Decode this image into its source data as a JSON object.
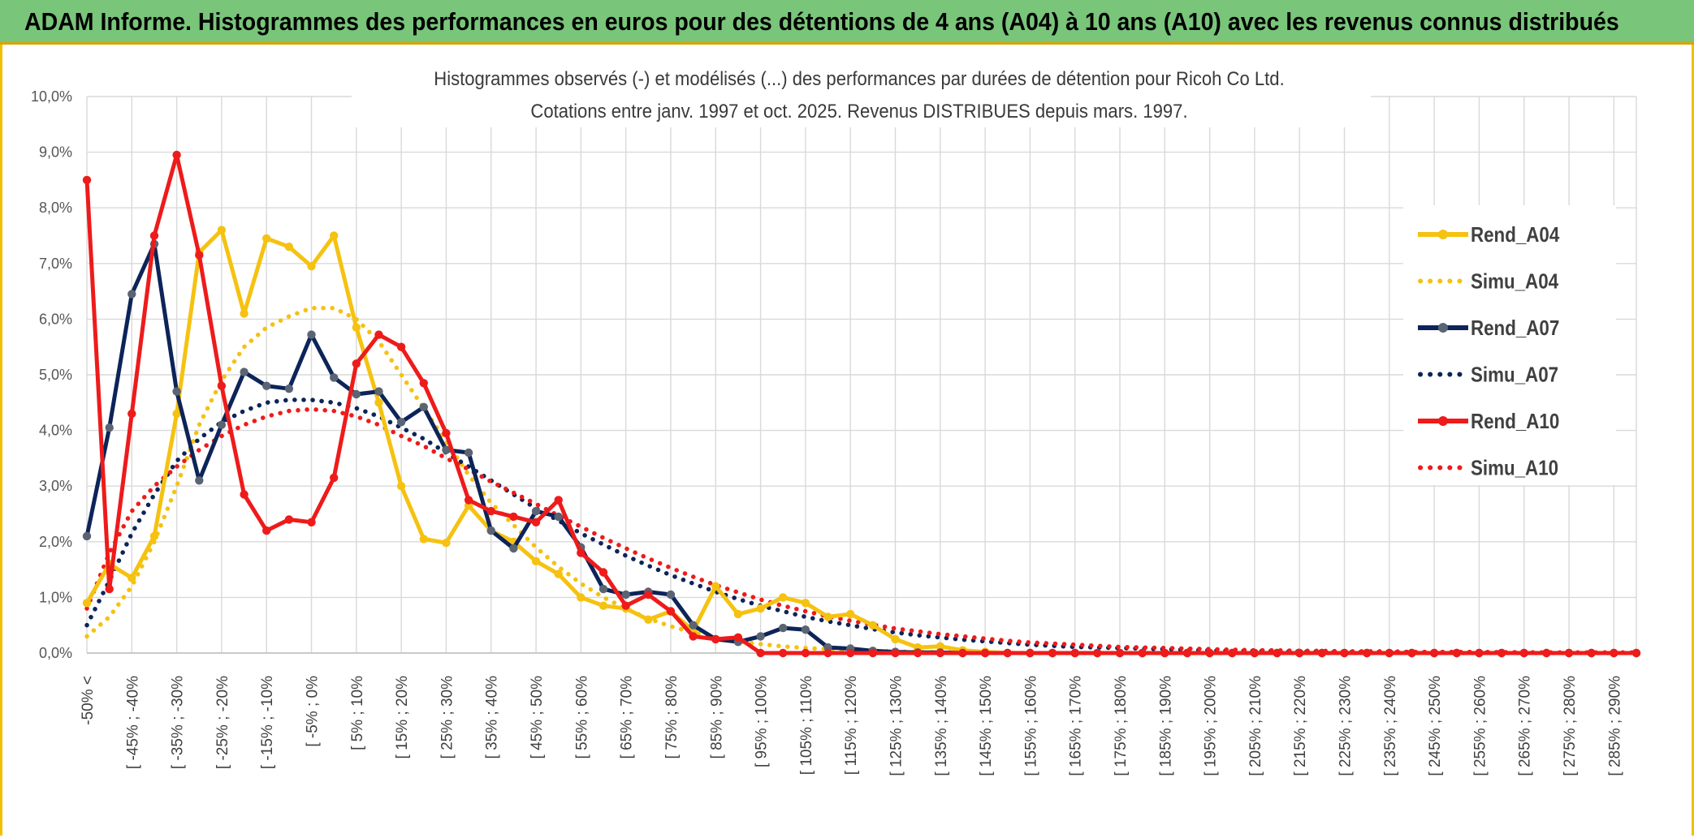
{
  "banner": {
    "title": "ADAM Informe. Histogrammes des performances en euros pour des détentions de 4 ans (A04) à 10 ans (A10) avec les revenus connus distribués"
  },
  "colors": {
    "A04": "#f5c211",
    "A07": "#0d2459",
    "A10": "#ee1b1b",
    "grid": "#d9d9d9",
    "banner": "#79c57a"
  },
  "chart_data": {
    "type": "line",
    "title": "Histogrammes observés (-) et modélisés (...) des performances par durées de détention pour Ricoh Co Ltd.",
    "subtitle": "Cotations entre janv. 1997 et oct. 2025. Revenus DISTRIBUES depuis mars. 1997.",
    "xlabel": "",
    "ylabel": "",
    "ylim": [
      0,
      10
    ],
    "y_ticks": [
      "0,0%",
      "1,0%",
      "2,0%",
      "3,0%",
      "4,0%",
      "5,0%",
      "6,0%",
      "7,0%",
      "8,0%",
      "9,0%",
      "10,0%"
    ],
    "grid": true,
    "legend_position": "right",
    "x_tick_labels": [
      "-50% <",
      "[ -45% ; -40%",
      "[ -35% ; -30%",
      "[ -25% ; -20%",
      "[ -15% ; -10%",
      "[ -5% ; 0%",
      "[ 5% ; 10%",
      "[ 15% ; 20%",
      "[ 25% ; 30%",
      "[ 35% ; 40%",
      "[ 45% ; 50%",
      "[ 55% ; 60%",
      "[ 65% ; 70%",
      "[ 75% ; 80%",
      "[ 85% ; 90%",
      "[ 95% ; 100%",
      "[ 105% ; 110%",
      "[ 115% ; 120%",
      "[ 125% ; 130%",
      "[ 135% ; 140%",
      "[ 145% ; 150%",
      "[ 155% ; 160%",
      "[ 165% ; 170%",
      "[ 175% ; 180%",
      "[ 185% ; 190%",
      "[ 195% ; 200%",
      "[ 205% ; 210%",
      "[ 215% ; 220%",
      "[ 225% ; 230%",
      "[ 235% ; 240%",
      "[ 245% ; 250%",
      "[ 255% ; 260%",
      "[ 265% ; 270%",
      "[ 275% ; 280%",
      "[ 285% ; 290%"
    ],
    "series": [
      {
        "name": "Rend_A04",
        "style": "solid",
        "markers": true,
        "color_key": "A04",
        "values": [
          0.9,
          1.6,
          1.35,
          2.1,
          4.3,
          7.2,
          7.6,
          6.1,
          7.45,
          7.3,
          6.95,
          7.5,
          5.85,
          4.5,
          3.0,
          2.05,
          1.98,
          2.65,
          2.2,
          2.0,
          1.65,
          1.42,
          1.0,
          0.85,
          0.8,
          0.6,
          0.75,
          0.4,
          1.2,
          0.7,
          0.8,
          1.0,
          0.9,
          0.65,
          0.7,
          0.5,
          0.25,
          0.1,
          0.12,
          0.05,
          0.02,
          0,
          0,
          0,
          0,
          0,
          0,
          0,
          0,
          0,
          0,
          0,
          0,
          0,
          0,
          0,
          0,
          0,
          0,
          0,
          0,
          0,
          0,
          0,
          0,
          0,
          0,
          0,
          0,
          0
        ]
      },
      {
        "name": "Simu_A04",
        "style": "dotted",
        "markers": false,
        "color_key": "A04",
        "values": [
          0.3,
          0.65,
          1.2,
          2.0,
          3.0,
          4.1,
          4.9,
          5.5,
          5.85,
          6.05,
          6.2,
          6.2,
          6.0,
          5.6,
          5.0,
          4.4,
          3.8,
          3.2,
          2.7,
          2.3,
          1.9,
          1.55,
          1.25,
          1.0,
          0.8,
          0.62,
          0.48,
          0.37,
          0.28,
          0.21,
          0.16,
          0.12,
          0.09,
          0.07,
          0.05,
          0.04,
          0.03,
          0.02,
          0.015,
          0.01,
          0.01,
          0.005,
          0,
          0,
          0,
          0,
          0,
          0,
          0,
          0,
          0,
          0,
          0,
          0,
          0,
          0,
          0,
          0,
          0,
          0,
          0,
          0,
          0,
          0,
          0,
          0,
          0,
          0,
          0,
          0
        ]
      },
      {
        "name": "Rend_A07",
        "style": "solid",
        "markers": true,
        "color_key": "A07",
        "values": [
          2.1,
          4.05,
          6.45,
          7.35,
          4.7,
          3.1,
          4.1,
          5.05,
          4.8,
          4.75,
          5.72,
          4.95,
          4.65,
          4.7,
          4.15,
          4.42,
          3.65,
          3.6,
          2.2,
          1.88,
          2.55,
          2.45,
          1.9,
          1.15,
          1.05,
          1.1,
          1.05,
          0.5,
          0.25,
          0.2,
          0.3,
          0.45,
          0.42,
          0.1,
          0.08,
          0.04,
          0.02,
          0.01,
          0.01,
          0,
          0,
          0,
          0,
          0,
          0,
          0,
          0,
          0,
          0,
          0,
          0,
          0,
          0,
          0,
          0,
          0,
          0,
          0,
          0,
          0,
          0,
          0,
          0,
          0,
          0,
          0,
          0,
          0,
          0,
          0
        ]
      },
      {
        "name": "Simu_A07",
        "style": "dotted",
        "markers": false,
        "color_key": "A07",
        "values": [
          0.5,
          1.3,
          2.15,
          2.85,
          3.45,
          3.85,
          4.15,
          4.35,
          4.5,
          4.55,
          4.55,
          4.5,
          4.4,
          4.25,
          4.05,
          3.85,
          3.6,
          3.35,
          3.1,
          2.85,
          2.6,
          2.38,
          2.15,
          1.95,
          1.75,
          1.57,
          1.4,
          1.25,
          1.1,
          0.97,
          0.85,
          0.75,
          0.65,
          0.57,
          0.5,
          0.43,
          0.37,
          0.32,
          0.28,
          0.24,
          0.21,
          0.18,
          0.15,
          0.13,
          0.11,
          0.1,
          0.09,
          0.08,
          0.07,
          0.06,
          0.05,
          0.04,
          0.04,
          0.03,
          0.03,
          0.025,
          0.02,
          0.02,
          0.015,
          0.015,
          0.01,
          0.01,
          0.01,
          0.01,
          0.005,
          0.005,
          0.005,
          0.005,
          0.005,
          0.005
        ]
      },
      {
        "name": "Rend_A10",
        "style": "solid",
        "markers": true,
        "color_key": "A10",
        "values": [
          8.5,
          1.15,
          4.3,
          7.5,
          8.95,
          7.15,
          4.8,
          2.85,
          2.2,
          2.4,
          2.35,
          3.15,
          5.2,
          5.72,
          5.5,
          4.85,
          3.95,
          2.75,
          2.55,
          2.45,
          2.35,
          2.75,
          1.8,
          1.45,
          0.85,
          1.05,
          0.75,
          0.3,
          0.25,
          0.28,
          0,
          0,
          0,
          0,
          0,
          0,
          0,
          0,
          0,
          0,
          0,
          0,
          0,
          0,
          0,
          0,
          0,
          0,
          0,
          0,
          0,
          0,
          0,
          0,
          0,
          0,
          0,
          0,
          0,
          0,
          0,
          0,
          0,
          0,
          0,
          0,
          0,
          0,
          0,
          0
        ]
      },
      {
        "name": "Simu_A10",
        "style": "dotted",
        "markers": false,
        "color_key": "A10",
        "values": [
          0.8,
          1.8,
          2.55,
          3.0,
          3.35,
          3.65,
          3.9,
          4.1,
          4.25,
          4.35,
          4.38,
          4.35,
          4.25,
          4.1,
          3.9,
          3.72,
          3.5,
          3.3,
          3.08,
          2.88,
          2.68,
          2.47,
          2.27,
          2.07,
          1.88,
          1.7,
          1.53,
          1.37,
          1.22,
          1.09,
          0.96,
          0.85,
          0.75,
          0.66,
          0.58,
          0.51,
          0.44,
          0.39,
          0.34,
          0.3,
          0.26,
          0.22,
          0.19,
          0.17,
          0.15,
          0.13,
          0.11,
          0.1,
          0.09,
          0.08,
          0.07,
          0.06,
          0.05,
          0.05,
          0.04,
          0.04,
          0.03,
          0.03,
          0.03,
          0.02,
          0.02,
          0.02,
          0.02,
          0.015,
          0.015,
          0.01,
          0.01,
          0.01,
          0.01,
          0.01
        ]
      }
    ]
  }
}
